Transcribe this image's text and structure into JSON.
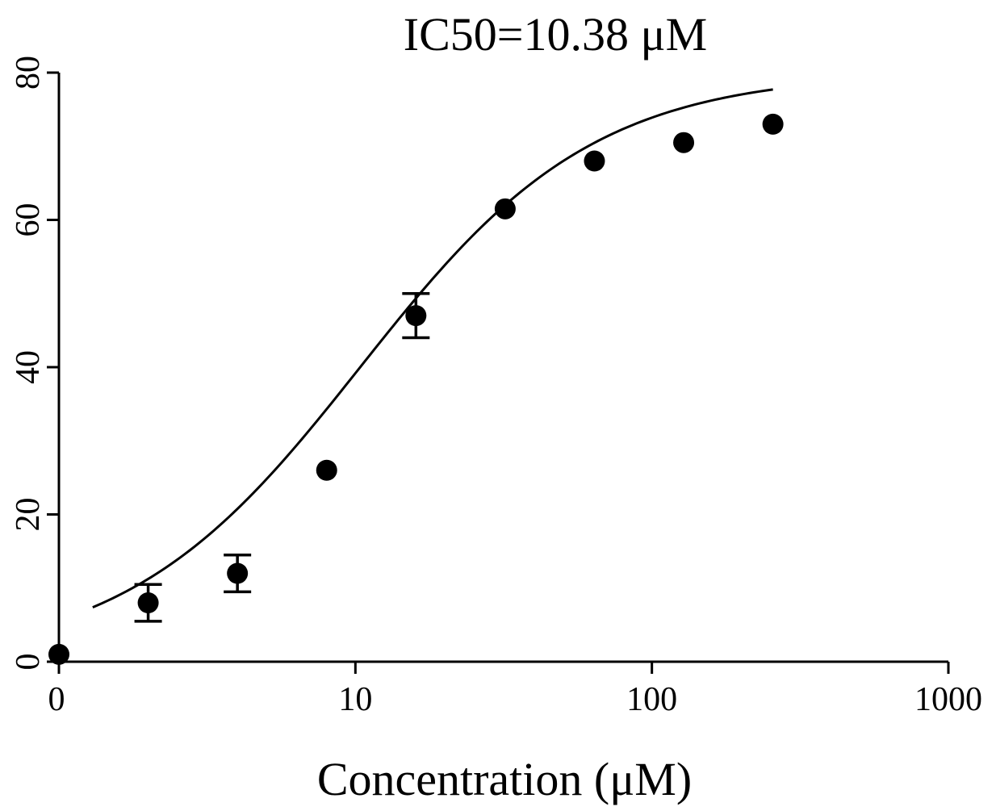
{
  "chart_data": {
    "type": "scatter",
    "title": "IC50=10.38 μM",
    "xlabel": "Concentration (μM)",
    "ylabel": "",
    "x_scale": "log",
    "x_tick_labels": [
      "0",
      "10",
      "100",
      "1000"
    ],
    "y_tick_labels": [
      "0",
      "20",
      "40",
      "60",
      "80"
    ],
    "y_ticks": [
      0,
      20,
      40,
      60,
      80
    ],
    "ylim": [
      0,
      80
    ],
    "grid": false,
    "series": [
      {
        "points": [
          {
            "x": 1,
            "y": 1,
            "err": 0
          },
          {
            "x": 2,
            "y": 8,
            "err": 2.5
          },
          {
            "x": 4,
            "y": 12,
            "err": 2.5
          },
          {
            "x": 8,
            "y": 26,
            "err": 0
          },
          {
            "x": 16,
            "y": 47,
            "err": 3
          },
          {
            "x": 32,
            "y": 61.5,
            "err": 0
          },
          {
            "x": 64,
            "y": 68,
            "err": 0
          },
          {
            "x": 128,
            "y": 70.5,
            "err": 0
          },
          {
            "x": 256,
            "y": 73,
            "err": 0
          }
        ]
      }
    ],
    "fit": {
      "model": "sigmoidal dose-response",
      "ic50": 10.38,
      "top": 80,
      "bottom": 0,
      "hill": 1.1
    }
  }
}
